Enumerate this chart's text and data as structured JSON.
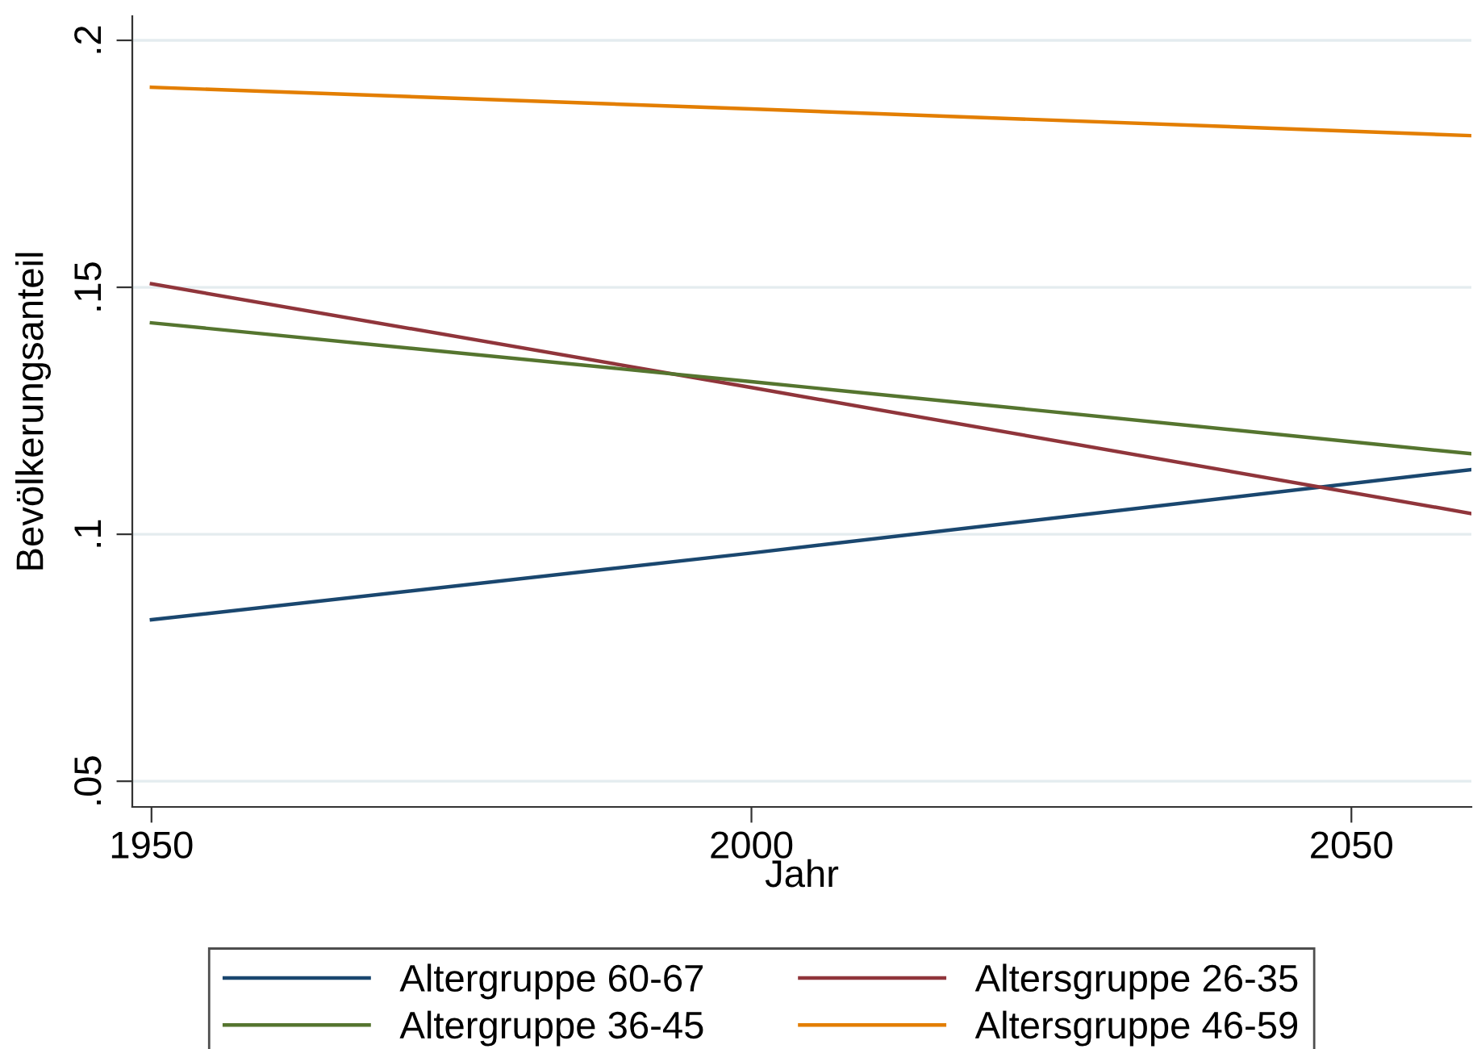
{
  "chart_data": {
    "type": "line",
    "xlabel": "Jahr",
    "ylabel": "Bevölkerungsanteil",
    "x": [
      1950,
      2000,
      2060
    ],
    "series": [
      {
        "name": "Altergruppe 60-67",
        "color": "#1a476f",
        "values": [
          0.0827,
          0.0962,
          0.1131
        ]
      },
      {
        "name": "Altersgruppe 26-35",
        "color": "#90353b",
        "values": [
          0.1507,
          0.1297,
          0.1042
        ]
      },
      {
        "name": "Altergruppe 36-45",
        "color": "#55752f",
        "values": [
          0.1428,
          0.1309,
          0.1163
        ]
      },
      {
        "name": "Altersgruppe 46-59",
        "color": "#e37e00",
        "values": [
          0.1905,
          0.1861,
          0.1807
        ]
      }
    ],
    "xlim": [
      1948.4,
      2060
    ],
    "ylim": [
      0.0448,
      0.2049
    ],
    "xticks": [
      1950,
      2000,
      2050
    ],
    "yticks": [
      {
        "value": 0.05,
        "label": ".05"
      },
      {
        "value": 0.1,
        "label": ".1"
      },
      {
        "value": 0.15,
        "label": ".15"
      },
      {
        "value": 0.2,
        "label": ".2"
      }
    ],
    "grid": "y",
    "legend": "bottom",
    "marker": "none",
    "line_style": "solid"
  }
}
